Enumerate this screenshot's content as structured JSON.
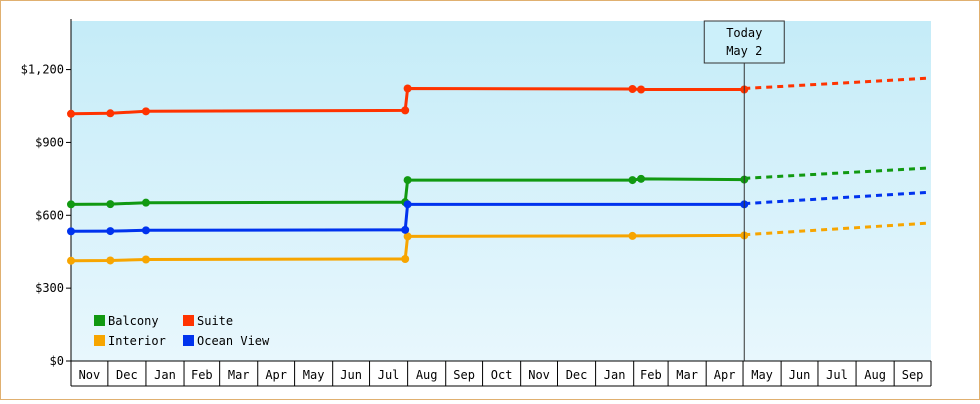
{
  "chart_data": {
    "type": "line",
    "title": "",
    "xlabel": "",
    "ylabel": "",
    "ylim": [
      0,
      1400
    ],
    "y_ticks": [
      {
        "value": 0,
        "label": "$0"
      },
      {
        "value": 300,
        "label": "$300"
      },
      {
        "value": 600,
        "label": "$600"
      },
      {
        "value": 900,
        "label": "$900"
      },
      {
        "value": 1200,
        "label": "$1,200"
      }
    ],
    "months": [
      "Nov",
      "Dec",
      "Jan",
      "Feb",
      "Mar",
      "Apr",
      "May",
      "Jun",
      "Jul",
      "Aug",
      "Sep",
      "Oct",
      "Nov",
      "Dec",
      "Jan",
      "Feb",
      "Mar",
      "Apr",
      "May",
      "Jun",
      "Jul",
      "Aug",
      "Sep"
    ],
    "first_month_start": "2023-11-01",
    "today": {
      "date": "2025-05-02",
      "label_line1": "Today",
      "label_line2": "May 2"
    },
    "grid": false,
    "background_gradient": [
      "#c5ecf8",
      "#e8f7fd"
    ],
    "legend_position": "bottom-left",
    "series": [
      {
        "name": "Balcony",
        "color": "#119911",
        "points": [
          {
            "date": "2023-11-01",
            "y": 645
          },
          {
            "date": "2023-12-03",
            "y": 646
          },
          {
            "date": "2024-01-01",
            "y": 652
          },
          {
            "date": "2024-07-30",
            "y": 654
          },
          {
            "date": "2024-08-01",
            "y": 745
          },
          {
            "date": "2025-01-31",
            "y": 745
          },
          {
            "date": "2025-02-07",
            "y": 750
          },
          {
            "date": "2025-05-02",
            "y": 747
          }
        ],
        "forecast": [
          {
            "date": "2025-05-02",
            "y": 752
          },
          {
            "date": "2025-09-30",
            "y": 795
          }
        ]
      },
      {
        "name": "Suite",
        "color": "#ff3300",
        "points": [
          {
            "date": "2023-11-01",
            "y": 1018
          },
          {
            "date": "2023-12-03",
            "y": 1020
          },
          {
            "date": "2024-01-01",
            "y": 1028
          },
          {
            "date": "2024-07-30",
            "y": 1032
          },
          {
            "date": "2024-08-01",
            "y": 1122
          },
          {
            "date": "2025-01-31",
            "y": 1120
          },
          {
            "date": "2025-02-07",
            "y": 1118
          },
          {
            "date": "2025-05-02",
            "y": 1118
          }
        ],
        "forecast": [
          {
            "date": "2025-05-02",
            "y": 1122
          },
          {
            "date": "2025-09-30",
            "y": 1165
          }
        ]
      },
      {
        "name": "Interior",
        "color": "#f7a500",
        "points": [
          {
            "date": "2023-11-01",
            "y": 413
          },
          {
            "date": "2023-12-03",
            "y": 414
          },
          {
            "date": "2024-01-01",
            "y": 418
          },
          {
            "date": "2024-07-30",
            "y": 420
          },
          {
            "date": "2024-08-01",
            "y": 513
          },
          {
            "date": "2025-01-31",
            "y": 515
          },
          {
            "date": "2025-05-02",
            "y": 517
          }
        ],
        "forecast": [
          {
            "date": "2025-05-02",
            "y": 520
          },
          {
            "date": "2025-09-30",
            "y": 568
          }
        ]
      },
      {
        "name": "Ocean View",
        "color": "#0033ee",
        "points": [
          {
            "date": "2023-11-01",
            "y": 534
          },
          {
            "date": "2023-12-03",
            "y": 535
          },
          {
            "date": "2024-01-01",
            "y": 538
          },
          {
            "date": "2024-07-30",
            "y": 540
          },
          {
            "date": "2024-08-01",
            "y": 645
          },
          {
            "date": "2025-05-02",
            "y": 645
          }
        ],
        "forecast": [
          {
            "date": "2025-05-02",
            "y": 648
          },
          {
            "date": "2025-09-30",
            "y": 695
          }
        ]
      }
    ]
  }
}
